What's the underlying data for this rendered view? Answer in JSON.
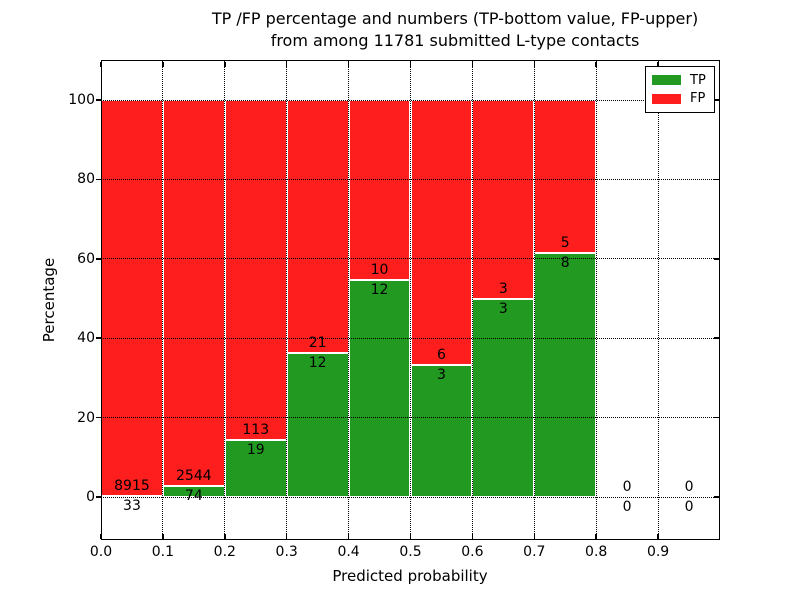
{
  "chart_data": {
    "type": "bar",
    "stacked": true,
    "title": [
      "TP /FP percentage and numbers (TP-bottom value, FP-upper)",
      "from among 11781 submitted L-type contacts"
    ],
    "xlabel": "Predicted probability",
    "ylabel": "Percentage",
    "x_ticks": [
      "0.0",
      "0.1",
      "0.2",
      "0.3",
      "0.4",
      "0.5",
      "0.6",
      "0.7",
      "0.8",
      "0.9"
    ],
    "y_ticks": [
      "0",
      "20",
      "40",
      "60",
      "80",
      "100"
    ],
    "xlim": [
      0.0,
      1.0
    ],
    "ylim": [
      0,
      100
    ],
    "grid": "dotted-black-both-axes",
    "legend_position": "upper-right",
    "legend": [
      {
        "label": "TP",
        "color": "#229a22"
      },
      {
        "label": "FP",
        "color": "#fe1e1e"
      }
    ],
    "bins": [
      {
        "range": [
          0.0,
          0.1
        ],
        "tp": 33,
        "fp": 8915,
        "tp_pct": 0.37,
        "fp_pct": 99.63
      },
      {
        "range": [
          0.1,
          0.2
        ],
        "tp": 74,
        "fp": 2544,
        "tp_pct": 2.83,
        "fp_pct": 97.17
      },
      {
        "range": [
          0.2,
          0.3
        ],
        "tp": 19,
        "fp": 113,
        "tp_pct": 14.39,
        "fp_pct": 85.61
      },
      {
        "range": [
          0.3,
          0.4
        ],
        "tp": 12,
        "fp": 21,
        "tp_pct": 36.36,
        "fp_pct": 63.64
      },
      {
        "range": [
          0.4,
          0.5
        ],
        "tp": 12,
        "fp": 10,
        "tp_pct": 54.55,
        "fp_pct": 45.45
      },
      {
        "range": [
          0.5,
          0.6
        ],
        "tp": 3,
        "fp": 6,
        "tp_pct": 33.33,
        "fp_pct": 66.67
      },
      {
        "range": [
          0.6,
          0.7
        ],
        "tp": 3,
        "fp": 3,
        "tp_pct": 50.0,
        "fp_pct": 50.0
      },
      {
        "range": [
          0.7,
          0.8
        ],
        "tp": 8,
        "fp": 5,
        "tp_pct": 61.54,
        "fp_pct": 38.46
      },
      {
        "range": [
          0.8,
          0.9
        ],
        "tp": 0,
        "fp": 0,
        "tp_pct": null,
        "fp_pct": null
      },
      {
        "range": [
          0.9,
          1.0
        ],
        "tp": 0,
        "fp": 0,
        "tp_pct": null,
        "fp_pct": null
      }
    ]
  },
  "colors": {
    "tp_green": "#229a22",
    "fp_red": "#fe1e1e",
    "grid": "#000000",
    "background": "#ffffff"
  }
}
